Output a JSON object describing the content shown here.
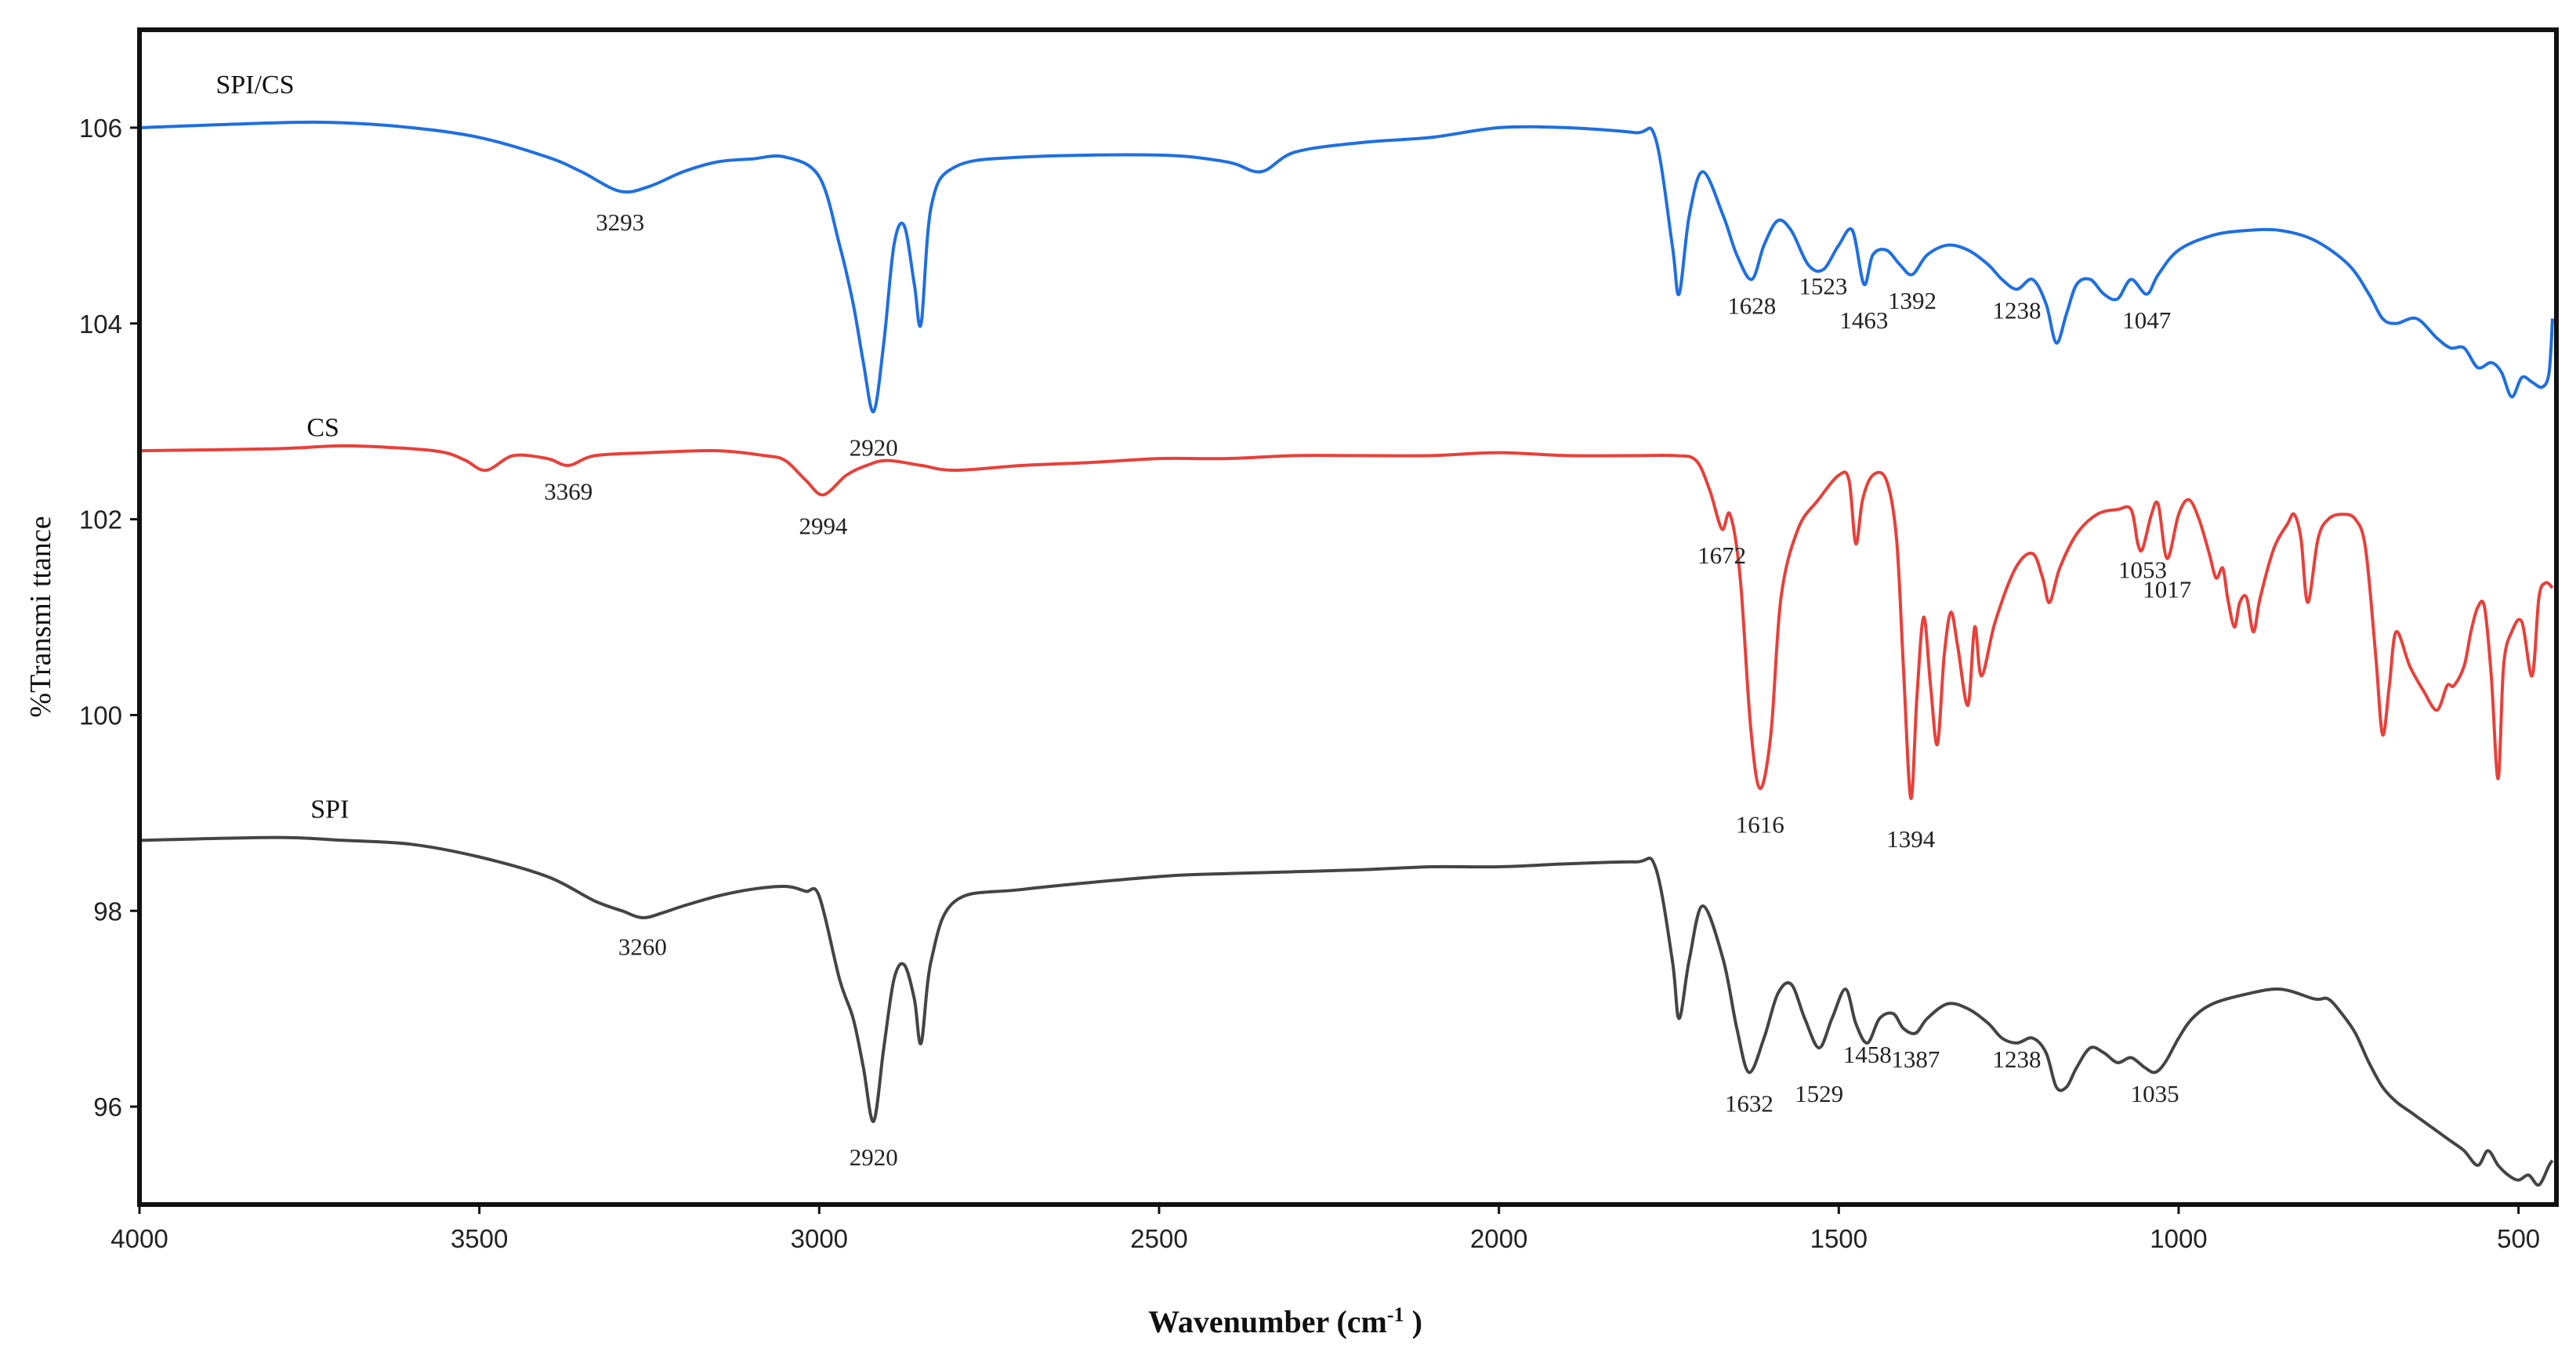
{
  "chart_data": {
    "type": "line",
    "title": "",
    "xlabel": "Wavenumber (cm",
    "xlabel_sup": "-1",
    "xlabel_close": " )",
    "ylabel": "%Transmi ttance",
    "xlim": [
      4000,
      450
    ],
    "ylim": [
      95,
      107
    ],
    "x_ticks": [
      4000,
      3500,
      3000,
      2500,
      2000,
      1500,
      1000,
      500
    ],
    "x_tick_labels": [
      "4000",
      "3500",
      "3000",
      "2500",
      "2000",
      "1500",
      "1000",
      "500"
    ],
    "y_ticks": [
      96,
      98,
      100,
      102,
      104,
      106
    ],
    "y_tick_labels": [
      "96",
      "98",
      "100",
      "102",
      "104",
      "106"
    ],
    "grid": false,
    "legend": "none",
    "series": [
      {
        "name": "SPI/CS",
        "color": "#1f6fe0",
        "x": [
          4000,
          3800,
          3700,
          3600,
          3500,
          3400,
          3350,
          3293,
          3250,
          3200,
          3150,
          3100,
          3050,
          3000,
          2970,
          2950,
          2935,
          2920,
          2905,
          2890,
          2875,
          2860,
          2850,
          2835,
          2800,
          2700,
          2500,
          2400,
          2350,
          2300,
          2200,
          2100,
          2000,
          1900,
          1800,
          1770,
          1745,
          1735,
          1720,
          1700,
          1670,
          1650,
          1628,
          1610,
          1590,
          1570,
          1545,
          1523,
          1500,
          1480,
          1463,
          1450,
          1430,
          1410,
          1392,
          1370,
          1340,
          1310,
          1280,
          1260,
          1238,
          1215,
          1195,
          1180,
          1165,
          1150,
          1130,
          1110,
          1090,
          1070,
          1047,
          1030,
          1000,
          950,
          900,
          850,
          800,
          750,
          720,
          700,
          680,
          650,
          620,
          600,
          580,
          560,
          540,
          525,
          510,
          495,
          480,
          465,
          455,
          450
        ],
        "y": [
          106.0,
          106.05,
          106.05,
          106.0,
          105.9,
          105.7,
          105.55,
          105.35,
          105.4,
          105.55,
          105.65,
          105.68,
          105.7,
          105.5,
          104.8,
          104.2,
          103.6,
          103.1,
          103.8,
          104.8,
          105.0,
          104.4,
          104.0,
          105.2,
          105.6,
          105.7,
          105.72,
          105.65,
          105.55,
          105.75,
          105.85,
          105.9,
          106.0,
          106.0,
          105.95,
          105.9,
          104.8,
          104.3,
          105.1,
          105.55,
          105.1,
          104.7,
          104.45,
          104.8,
          105.05,
          104.95,
          104.6,
          104.55,
          104.8,
          104.95,
          104.4,
          104.7,
          104.75,
          104.6,
          104.5,
          104.7,
          104.8,
          104.75,
          104.6,
          104.45,
          104.35,
          104.45,
          104.2,
          103.8,
          104.1,
          104.4,
          104.45,
          104.3,
          104.25,
          104.45,
          104.3,
          104.5,
          104.75,
          104.9,
          104.95,
          104.95,
          104.85,
          104.6,
          104.3,
          104.05,
          104.0,
          104.05,
          103.85,
          103.75,
          103.75,
          103.55,
          103.6,
          103.5,
          103.25,
          103.45,
          103.4,
          103.35,
          103.5,
          104.05
        ]
      },
      {
        "name": "CS",
        "color": "#e8403a",
        "x": [
          4000,
          3800,
          3700,
          3600,
          3550,
          3520,
          3490,
          3450,
          3400,
          3369,
          3330,
          3250,
          3150,
          3080,
          3050,
          3020,
          2994,
          2960,
          2930,
          2900,
          2850,
          2800,
          2700,
          2600,
          2500,
          2400,
          2300,
          2200,
          2100,
          2000,
          1900,
          1800,
          1740,
          1710,
          1690,
          1672,
          1660,
          1645,
          1630,
          1616,
          1600,
          1585,
          1560,
          1530,
          1500,
          1485,
          1475,
          1465,
          1450,
          1430,
          1415,
          1405,
          1394,
          1385,
          1375,
          1365,
          1355,
          1345,
          1335,
          1325,
          1310,
          1300,
          1290,
          1270,
          1240,
          1215,
          1200,
          1190,
          1175,
          1150,
          1120,
          1090,
          1070,
          1060,
          1053,
          1040,
          1030,
          1017,
          1000,
          985,
          970,
          955,
          945,
          935,
          928,
          918,
          910,
          900,
          890,
          880,
          860,
          840,
          830,
          820,
          810,
          795,
          780,
          760,
          740,
          725,
          710,
          700,
          690,
          680,
          660,
          640,
          620,
          605,
          595,
          580,
          570,
          560,
          550,
          540,
          530,
          522,
          510,
          495,
          480,
          470,
          460,
          450
        ],
        "y": [
          102.7,
          102.72,
          102.75,
          102.72,
          102.68,
          102.6,
          102.5,
          102.65,
          102.62,
          102.55,
          102.65,
          102.68,
          102.7,
          102.65,
          102.6,
          102.4,
          102.25,
          102.45,
          102.55,
          102.6,
          102.55,
          102.5,
          102.55,
          102.58,
          102.62,
          102.62,
          102.65,
          102.65,
          102.65,
          102.68,
          102.65,
          102.65,
          102.65,
          102.6,
          102.3,
          101.9,
          102.05,
          101.4,
          99.9,
          99.25,
          99.8,
          101.2,
          101.9,
          102.2,
          102.45,
          102.4,
          101.75,
          102.2,
          102.45,
          102.4,
          101.8,
          100.5,
          99.15,
          100.2,
          101.0,
          100.3,
          99.7,
          100.6,
          101.05,
          100.7,
          100.1,
          100.9,
          100.4,
          100.95,
          101.5,
          101.65,
          101.4,
          101.15,
          101.5,
          101.85,
          102.05,
          102.1,
          102.1,
          101.75,
          101.7,
          102.05,
          102.15,
          101.6,
          102.05,
          102.2,
          102.0,
          101.65,
          101.4,
          101.5,
          101.2,
          100.9,
          101.15,
          101.2,
          100.85,
          101.2,
          101.7,
          101.95,
          102.05,
          101.8,
          101.15,
          101.8,
          102.0,
          102.05,
          102.0,
          101.7,
          100.6,
          99.8,
          100.3,
          100.85,
          100.5,
          100.25,
          100.05,
          100.3,
          100.3,
          100.5,
          100.85,
          101.1,
          101.1,
          100.4,
          99.35,
          100.5,
          100.85,
          100.95,
          100.4,
          101.2,
          101.35,
          101.3
        ]
      },
      {
        "name": "SPI",
        "color": "#444444",
        "x": [
          4000,
          3800,
          3700,
          3600,
          3500,
          3400,
          3330,
          3290,
          3260,
          3230,
          3200,
          3150,
          3100,
          3050,
          3020,
          3000,
          2970,
          2950,
          2935,
          2920,
          2905,
          2890,
          2875,
          2860,
          2850,
          2835,
          2800,
          2700,
          2500,
          2400,
          2300,
          2200,
          2100,
          2000,
          1900,
          1800,
          1770,
          1745,
          1735,
          1720,
          1700,
          1670,
          1650,
          1632,
          1610,
          1590,
          1570,
          1550,
          1529,
          1510,
          1490,
          1475,
          1458,
          1440,
          1420,
          1405,
          1387,
          1370,
          1340,
          1310,
          1280,
          1260,
          1238,
          1215,
          1195,
          1180,
          1165,
          1150,
          1130,
          1110,
          1090,
          1070,
          1050,
          1035,
          1020,
          1000,
          980,
          950,
          900,
          850,
          800,
          780,
          760,
          740,
          720,
          700,
          680,
          660,
          640,
          620,
          600,
          580,
          560,
          545,
          530,
          515,
          500,
          485,
          470,
          455,
          450
        ],
        "y": [
          98.72,
          98.75,
          98.72,
          98.68,
          98.55,
          98.35,
          98.1,
          98.0,
          97.93,
          97.98,
          98.05,
          98.15,
          98.22,
          98.25,
          98.2,
          98.15,
          97.3,
          96.9,
          96.4,
          95.85,
          96.6,
          97.3,
          97.45,
          97.1,
          96.65,
          97.5,
          98.1,
          98.22,
          98.35,
          98.38,
          98.4,
          98.42,
          98.45,
          98.45,
          98.48,
          98.5,
          98.45,
          97.5,
          96.9,
          97.5,
          98.05,
          97.5,
          96.8,
          96.35,
          96.7,
          97.15,
          97.25,
          96.9,
          96.6,
          96.9,
          97.2,
          96.85,
          96.65,
          96.9,
          96.95,
          96.8,
          96.75,
          96.9,
          97.05,
          97.0,
          96.85,
          96.7,
          96.65,
          96.7,
          96.55,
          96.2,
          96.2,
          96.4,
          96.6,
          96.55,
          96.45,
          96.5,
          96.4,
          96.35,
          96.45,
          96.7,
          96.9,
          97.05,
          97.15,
          97.2,
          97.1,
          97.1,
          96.95,
          96.75,
          96.45,
          96.2,
          96.05,
          95.95,
          95.85,
          95.75,
          95.65,
          95.55,
          95.4,
          95.55,
          95.4,
          95.3,
          95.25,
          95.3,
          95.2,
          95.4,
          95.45
        ]
      }
    ],
    "series_labels": [
      {
        "text": "SPI/CS",
        "x": 3830,
        "y": 106.35
      },
      {
        "text": "CS",
        "x": 3730,
        "y": 102.85
      },
      {
        "text": "SPI",
        "x": 3720,
        "y": 98.95
      }
    ],
    "annotations": [
      {
        "text": "3293",
        "x": 3293,
        "y": 104.95
      },
      {
        "text": "2920",
        "x": 2920,
        "y": 102.65
      },
      {
        "text": "1628",
        "x": 1628,
        "y": 104.1
      },
      {
        "text": "1523",
        "x": 1523,
        "y": 104.3
      },
      {
        "text": "1463",
        "x": 1463,
        "y": 103.95
      },
      {
        "text": "1392",
        "x": 1392,
        "y": 104.15
      },
      {
        "text": "1238",
        "x": 1238,
        "y": 104.05
      },
      {
        "text": "1047",
        "x": 1047,
        "y": 103.95
      },
      {
        "text": "3369",
        "x": 3369,
        "y": 102.2
      },
      {
        "text": "2994",
        "x": 2994,
        "y": 101.85
      },
      {
        "text": "1672",
        "x": 1672,
        "y": 101.55
      },
      {
        "text": "1053",
        "x": 1053,
        "y": 101.4
      },
      {
        "text": "1017",
        "x": 1017,
        "y": 101.2
      },
      {
        "text": "1616",
        "x": 1616,
        "y": 98.8
      },
      {
        "text": "1394",
        "x": 1394,
        "y": 98.65
      },
      {
        "text": "3260",
        "x": 3260,
        "y": 97.55
      },
      {
        "text": "2920",
        "x": 2920,
        "y": 95.4
      },
      {
        "text": "1632",
        "x": 1632,
        "y": 95.95
      },
      {
        "text": "1529",
        "x": 1529,
        "y": 96.05
      },
      {
        "text": "1458",
        "x": 1458,
        "y": 96.45
      },
      {
        "text": "1387",
        "x": 1387,
        "y": 96.4
      },
      {
        "text": "1238",
        "x": 1238,
        "y": 96.4
      },
      {
        "text": "1035",
        "x": 1035,
        "y": 96.05
      }
    ]
  }
}
